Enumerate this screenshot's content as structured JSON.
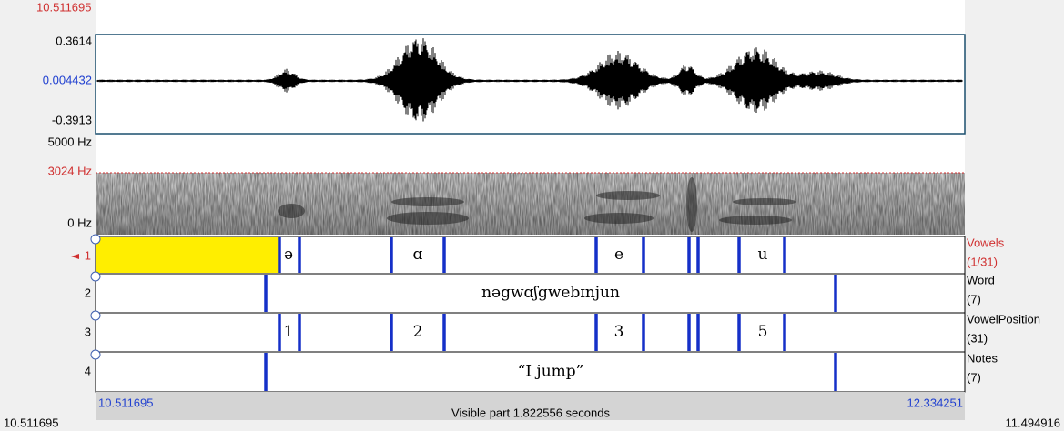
{
  "cursor_time": "10.511695",
  "waveform": {
    "max": "0.3614",
    "zero": "0.004432",
    "min": "-0.3913"
  },
  "spectrogram": {
    "max": "5000 Hz",
    "cursor": "3024 Hz",
    "min": "0 Hz"
  },
  "tiers": [
    {
      "number": "1",
      "name": "Vowels",
      "count": "(1/31)",
      "labels": [
        "ə",
        "ɑ",
        "e",
        "u"
      ]
    },
    {
      "number": "2",
      "name": "Word",
      "count": "(7)",
      "labels": [
        "nəgwɑʃgwebɪnjun"
      ]
    },
    {
      "number": "3",
      "name": "VowelPosition",
      "count": "(31)",
      "labels": [
        "1",
        "2",
        "3",
        "5"
      ]
    },
    {
      "number": "4",
      "name": "Notes",
      "count": "(7)",
      "labels": [
        "“I jump”"
      ]
    }
  ],
  "footer": {
    "window_start": "10.511695",
    "visible": "Visible part 1.822556 seconds",
    "window_end": "12.334251",
    "total_start": "10.511695",
    "total_end": "11.494916"
  }
}
